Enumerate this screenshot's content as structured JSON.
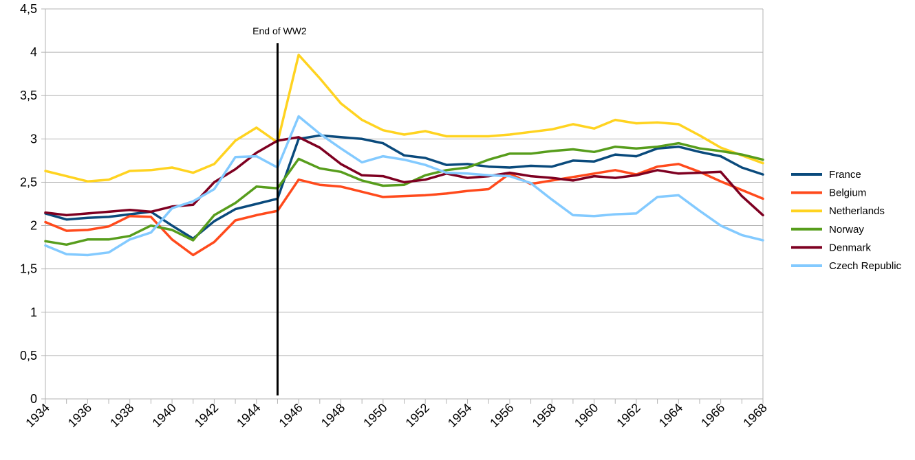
{
  "chart_data": {
    "type": "line",
    "title": "",
    "xlabel": "",
    "ylabel": "",
    "ylim": [
      0,
      4.5
    ],
    "xlim": [
      1934,
      1968
    ],
    "grid": true,
    "legend_placement": "right",
    "y_ticks": [
      "0",
      "0,5",
      "1",
      "1,5",
      "2",
      "2,5",
      "3",
      "3,5",
      "4",
      "4,5"
    ],
    "x_tick_labels": [
      "1934",
      "1936",
      "1938",
      "1940",
      "1942",
      "1944",
      "1946",
      "1948",
      "1950",
      "1952",
      "1954",
      "1956",
      "1958",
      "1960",
      "1962",
      "1964",
      "1966",
      "1968"
    ],
    "x": [
      1934,
      1935,
      1936,
      1937,
      1938,
      1939,
      1940,
      1941,
      1942,
      1943,
      1944,
      1945,
      1946,
      1947,
      1948,
      1949,
      1950,
      1951,
      1952,
      1953,
      1954,
      1955,
      1956,
      1957,
      1958,
      1959,
      1960,
      1961,
      1962,
      1963,
      1964,
      1965,
      1966,
      1967,
      1968
    ],
    "annotation": {
      "text": "End of WW2",
      "x": 1945
    },
    "series": [
      {
        "name": "France",
        "color": "#0a4a7c",
        "values": [
          2.14,
          2.07,
          2.09,
          2.1,
          2.13,
          2.16,
          2.0,
          1.85,
          2.05,
          2.19,
          2.25,
          2.31,
          3.0,
          3.04,
          3.02,
          3.0,
          2.95,
          2.81,
          2.78,
          2.7,
          2.71,
          2.68,
          2.67,
          2.69,
          2.68,
          2.75,
          2.74,
          2.82,
          2.8,
          2.89,
          2.91,
          2.85,
          2.8,
          2.67,
          2.59
        ]
      },
      {
        "name": "Belgium",
        "color": "#ff4a1c",
        "values": [
          2.04,
          1.94,
          1.95,
          1.99,
          2.11,
          2.1,
          1.84,
          1.66,
          1.81,
          2.06,
          2.12,
          2.17,
          2.53,
          2.47,
          2.45,
          2.39,
          2.33,
          2.34,
          2.35,
          2.37,
          2.4,
          2.42,
          2.6,
          2.48,
          2.52,
          2.56,
          2.6,
          2.64,
          2.59,
          2.68,
          2.71,
          2.62,
          2.51,
          2.41,
          2.31
        ]
      },
      {
        "name": "Netherlands",
        "color": "#ffd320",
        "values": [
          2.63,
          2.57,
          2.51,
          2.53,
          2.63,
          2.64,
          2.67,
          2.61,
          2.71,
          2.98,
          3.13,
          2.96,
          3.97,
          3.7,
          3.41,
          3.22,
          3.1,
          3.05,
          3.09,
          3.03,
          3.03,
          3.03,
          3.05,
          3.08,
          3.11,
          3.17,
          3.12,
          3.22,
          3.18,
          3.19,
          3.17,
          3.04,
          2.9,
          2.81,
          2.72
        ]
      },
      {
        "name": "Norway",
        "color": "#579d1c",
        "values": [
          1.82,
          1.78,
          1.84,
          1.84,
          1.88,
          2.0,
          1.95,
          1.83,
          2.12,
          2.26,
          2.45,
          2.43,
          2.77,
          2.66,
          2.62,
          2.52,
          2.46,
          2.47,
          2.58,
          2.64,
          2.67,
          2.76,
          2.83,
          2.83,
          2.86,
          2.88,
          2.85,
          2.91,
          2.89,
          2.91,
          2.95,
          2.89,
          2.86,
          2.82,
          2.76
        ]
      },
      {
        "name": "Denmark",
        "color": "#7e0021",
        "values": [
          2.15,
          2.12,
          2.14,
          2.16,
          2.18,
          2.16,
          2.22,
          2.24,
          2.5,
          2.65,
          2.84,
          2.98,
          3.02,
          2.9,
          2.71,
          2.58,
          2.57,
          2.5,
          2.53,
          2.6,
          2.55,
          2.57,
          2.61,
          2.57,
          2.55,
          2.52,
          2.57,
          2.55,
          2.58,
          2.64,
          2.6,
          2.61,
          2.62,
          2.34,
          2.12
        ]
      },
      {
        "name": "Czech Republic",
        "color": "#83caff",
        "values": [
          1.77,
          1.67,
          1.66,
          1.69,
          1.84,
          1.92,
          2.2,
          2.28,
          2.42,
          2.79,
          2.8,
          2.67,
          3.26,
          3.06,
          2.89,
          2.73,
          2.8,
          2.76,
          2.7,
          2.61,
          2.6,
          2.58,
          2.57,
          2.49,
          2.3,
          2.12,
          2.11,
          2.13,
          2.14,
          2.33,
          2.35,
          2.17,
          2.0,
          1.89,
          1.83
        ]
      }
    ]
  }
}
